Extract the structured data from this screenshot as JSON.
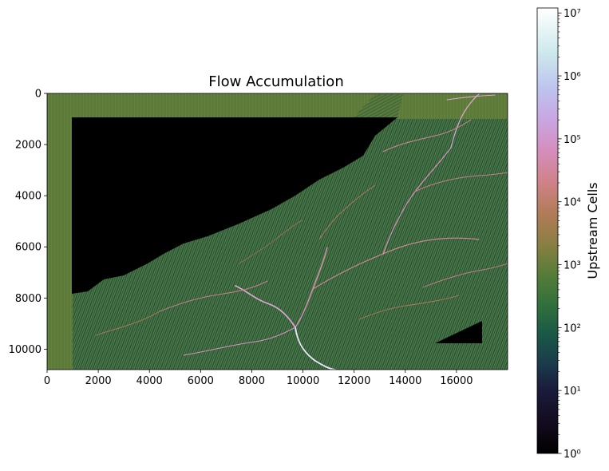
{
  "chart_data": {
    "type": "heatmap",
    "title": "Flow Accumulation",
    "xlabel": "",
    "ylabel": "",
    "x_ticks": [
      0,
      2000,
      4000,
      6000,
      8000,
      10000,
      12000,
      14000,
      16000
    ],
    "y_ticks": [
      0,
      2000,
      4000,
      6000,
      8000,
      10000
    ],
    "xlim": [
      0,
      18000
    ],
    "ylim": [
      10800,
      0
    ],
    "grid": false,
    "colorscale": "cubehelix",
    "colorbar": {
      "label": "Upstream Cells",
      "scale": "log",
      "range": [
        1,
        12000000
      ],
      "ticks": [
        {
          "value": 1,
          "label": "10⁰"
        },
        {
          "value": 10,
          "label": "10¹"
        },
        {
          "value": 100,
          "label": "10²"
        },
        {
          "value": 1000,
          "label": "10³"
        },
        {
          "value": 10000,
          "label": "10⁴"
        },
        {
          "value": 100000,
          "label": "10⁵"
        },
        {
          "value": 1000000,
          "label": "10⁶"
        },
        {
          "value": 10000000,
          "label": "10⁷"
        }
      ]
    }
  }
}
